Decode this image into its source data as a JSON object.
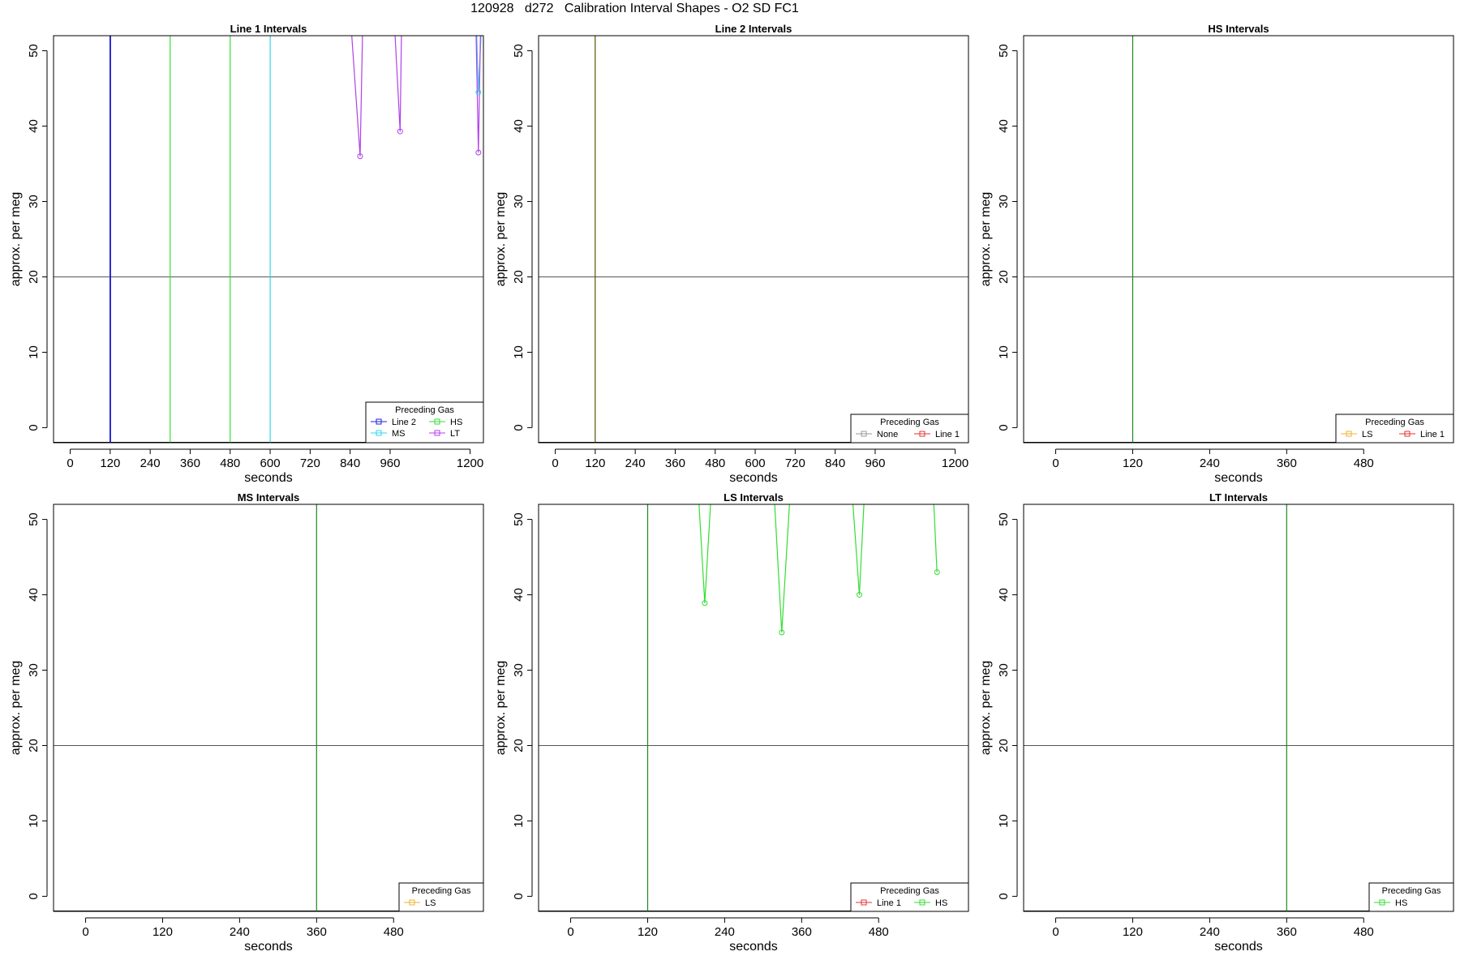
{
  "figure": {
    "title": "120928   d272   Calibration Interval Shapes - O2 SD FC1"
  },
  "colors": {
    "Line 1": "#e83030",
    "Line 2": "#2020d0",
    "HS": "#33dd33",
    "MS": "#33d6e8",
    "LS": "#f0b030",
    "LT": "#b040e8",
    "None": "#999999",
    "HS_dark": "#1a8a1a"
  },
  "chart_data": [
    {
      "type": "line",
      "title": "Line 1 Intervals",
      "xlabel": "seconds",
      "ylabel": "approx. per meg",
      "xlim": [
        -50,
        1240
      ],
      "ylim": [
        -2,
        52
      ],
      "xticks": [
        0,
        120,
        240,
        360,
        480,
        600,
        720,
        840,
        960,
        1200
      ],
      "yticks": [
        0,
        10,
        20,
        30,
        40,
        50
      ],
      "hline": 20,
      "legend": {
        "title": "Preceding Gas",
        "position": "bottom-right",
        "entries": [
          "Line 2",
          "HS",
          "MS",
          "LT"
        ],
        "columns": 2
      },
      "series": [
        {
          "name": "Line 2",
          "color": "#2020d0",
          "points": [
            [
              119.5,
              -2
            ],
            [
              119.5,
              52
            ]
          ]
        },
        {
          "name": "Line 2",
          "color": "#2020d0",
          "points": [
            [
              121,
              -2
            ],
            [
              121,
              52
            ]
          ]
        },
        {
          "name": "HS",
          "color": "#33dd33",
          "points": [
            [
              300,
              -2
            ],
            [
              300,
              52
            ]
          ]
        },
        {
          "name": "HS",
          "color": "#33dd33",
          "points": [
            [
              480,
              -2
            ],
            [
              480,
              52
            ]
          ]
        },
        {
          "name": "MS",
          "color": "#33d6e8",
          "points": [
            [
              600,
              -2
            ],
            [
              600,
              52
            ]
          ]
        },
        {
          "name": "MS",
          "color": "#33d6e8",
          "points": [
            [
              1220,
              52
            ],
            [
              1225,
              44.5
            ],
            [
              1233,
              52
            ]
          ]
        },
        {
          "name": "LT",
          "color": "#b040e8",
          "points": [
            [
              845,
              52
            ],
            [
              870,
              36
            ],
            [
              877,
              52
            ]
          ]
        },
        {
          "name": "LT",
          "color": "#b040e8",
          "points": [
            [
              975,
              52
            ],
            [
              990,
              39.3
            ],
            [
              994,
              52
            ]
          ]
        },
        {
          "name": "LT",
          "color": "#b040e8",
          "points": [
            [
              1218,
              52
            ],
            [
              1225,
              36.5
            ],
            [
              1231,
              52
            ]
          ]
        }
      ],
      "markers": [
        {
          "name": "LT",
          "x": 870,
          "y": 36
        },
        {
          "name": "LT",
          "x": 990,
          "y": 39.3
        },
        {
          "name": "LT",
          "x": 1225,
          "y": 36.5
        },
        {
          "name": "MS",
          "x": 1225,
          "y": 44.5
        }
      ]
    },
    {
      "type": "line",
      "title": "Line 2 Intervals",
      "xlabel": "seconds",
      "ylabel": "approx. per meg",
      "xlim": [
        -50,
        1240
      ],
      "ylim": [
        -2,
        52
      ],
      "xticks": [
        0,
        120,
        240,
        360,
        480,
        600,
        720,
        840,
        960,
        1200
      ],
      "yticks": [
        0,
        10,
        20,
        30,
        40,
        50
      ],
      "hline": 20,
      "legend": {
        "title": "Preceding Gas",
        "position": "bottom-right",
        "entries": [
          "None",
          "Line 1"
        ],
        "columns": 2
      },
      "series": [
        {
          "name": "None",
          "color": "#555500",
          "points": [
            [
              120,
              -2
            ],
            [
              120,
              52
            ]
          ]
        }
      ],
      "markers": []
    },
    {
      "type": "line",
      "title": "HS Intervals",
      "xlabel": "seconds",
      "ylabel": "approx. per meg",
      "xlim": [
        -50,
        620
      ],
      "ylim": [
        -2,
        52
      ],
      "xticks": [
        0,
        120,
        240,
        360,
        480
      ],
      "yticks": [
        0,
        10,
        20,
        30,
        40,
        50
      ],
      "hline": 20,
      "legend": {
        "title": "Preceding Gas",
        "position": "bottom-right",
        "entries": [
          "LS",
          "Line 1"
        ],
        "columns": 2
      },
      "series": [
        {
          "name": "LS",
          "color": "#1a8a1a",
          "points": [
            [
              120,
              -2
            ],
            [
              120,
              52
            ]
          ]
        }
      ],
      "markers": []
    },
    {
      "type": "line",
      "title": "MS Intervals",
      "xlabel": "seconds",
      "ylabel": "approx. per meg",
      "xlim": [
        -50,
        620
      ],
      "ylim": [
        -2,
        52
      ],
      "xticks": [
        0,
        120,
        240,
        360,
        480
      ],
      "yticks": [
        0,
        10,
        20,
        30,
        40,
        50
      ],
      "hline": 20,
      "legend": {
        "title": "Preceding Gas",
        "position": "bottom-right",
        "entries": [
          "LS"
        ],
        "columns": 1
      },
      "series": [
        {
          "name": "LS",
          "color": "#1a8a1a",
          "points": [
            [
              360,
              -2
            ],
            [
              360,
              52
            ]
          ]
        }
      ],
      "markers": []
    },
    {
      "type": "line",
      "title": "LS Intervals",
      "xlabel": "seconds",
      "ylabel": "approx. per meg",
      "xlim": [
        -50,
        620
      ],
      "ylim": [
        -2,
        52
      ],
      "xticks": [
        0,
        120,
        240,
        360,
        480
      ],
      "yticks": [
        0,
        10,
        20,
        30,
        40,
        50
      ],
      "hline": 20,
      "legend": {
        "title": "Preceding Gas",
        "position": "bottom-right",
        "entries": [
          "Line 1",
          "HS"
        ],
        "columns": 2
      },
      "series": [
        {
          "name": "Line 1",
          "color": "#1a8a1a",
          "points": [
            [
              120,
              -2
            ],
            [
              120,
              52
            ]
          ]
        },
        {
          "name": "HS",
          "color": "#33dd33",
          "points": [
            [
              200,
              52
            ],
            [
              209,
              38.9
            ],
            [
              218,
              52
            ]
          ]
        },
        {
          "name": "HS",
          "color": "#33dd33",
          "points": [
            [
              318,
              52
            ],
            [
              329,
              35
            ],
            [
              341,
              52
            ]
          ]
        },
        {
          "name": "HS",
          "color": "#33dd33",
          "points": [
            [
              440,
              52
            ],
            [
              450,
              40
            ],
            [
              457,
              52
            ]
          ]
        },
        {
          "name": "HS",
          "color": "#33dd33",
          "points": [
            [
              566,
              52
            ],
            [
              571,
              43
            ]
          ]
        }
      ],
      "markers": [
        {
          "name": "HS",
          "x": 209,
          "y": 38.9
        },
        {
          "name": "HS",
          "x": 329,
          "y": 35
        },
        {
          "name": "HS",
          "x": 450,
          "y": 40
        },
        {
          "name": "HS",
          "x": 571,
          "y": 43
        }
      ]
    },
    {
      "type": "line",
      "title": "LT Intervals",
      "xlabel": "seconds",
      "ylabel": "approx. per meg",
      "xlim": [
        -50,
        620
      ],
      "ylim": [
        -2,
        52
      ],
      "xticks": [
        0,
        120,
        240,
        360,
        480
      ],
      "yticks": [
        0,
        10,
        20,
        30,
        40,
        50
      ],
      "hline": 20,
      "legend": {
        "title": "Preceding Gas",
        "position": "bottom-right",
        "entries": [
          "HS"
        ],
        "columns": 1
      },
      "series": [
        {
          "name": "HS",
          "color": "#1a8a1a",
          "points": [
            [
              360,
              -2
            ],
            [
              360,
              52
            ]
          ]
        }
      ],
      "markers": []
    }
  ]
}
